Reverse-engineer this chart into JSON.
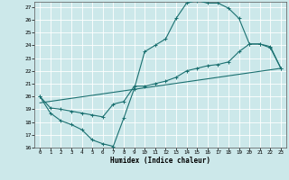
{
  "xlabel": "Humidex (Indice chaleur)",
  "bg_color": "#cce8ea",
  "line_color": "#1a7070",
  "grid_color": "#ffffff",
  "xlim": [
    -0.5,
    23.5
  ],
  "ylim": [
    16,
    27.4
  ],
  "xticks": [
    0,
    1,
    2,
    3,
    4,
    5,
    6,
    7,
    8,
    9,
    10,
    11,
    12,
    13,
    14,
    15,
    16,
    17,
    18,
    19,
    20,
    21,
    22,
    23
  ],
  "yticks": [
    16,
    17,
    18,
    19,
    20,
    21,
    22,
    23,
    24,
    25,
    26,
    27
  ],
  "line1_x": [
    0,
    1,
    2,
    3,
    4,
    5,
    6,
    7,
    8,
    9,
    10,
    11,
    12,
    13,
    14,
    15,
    16,
    17,
    18,
    19,
    20,
    21,
    22,
    23
  ],
  "line1_y": [
    20.0,
    18.7,
    18.1,
    17.8,
    17.4,
    16.6,
    16.3,
    16.1,
    18.3,
    20.6,
    23.5,
    24.0,
    24.5,
    26.1,
    27.3,
    27.5,
    27.3,
    27.3,
    26.9,
    26.1,
    24.1,
    24.1,
    23.8,
    22.2
  ],
  "line2_x": [
    0,
    1,
    2,
    3,
    4,
    5,
    6,
    7,
    8,
    9,
    10,
    11,
    12,
    13,
    14,
    15,
    16,
    17,
    18,
    19,
    20,
    21,
    22,
    23
  ],
  "line2_y": [
    20.0,
    19.1,
    19.0,
    18.85,
    18.7,
    18.55,
    18.4,
    19.4,
    19.6,
    20.8,
    20.8,
    21.0,
    21.2,
    21.5,
    22.0,
    22.2,
    22.4,
    22.5,
    22.7,
    23.5,
    24.1,
    24.1,
    23.9,
    22.2
  ],
  "line3_x": [
    0,
    23
  ],
  "line3_y": [
    19.5,
    22.2
  ],
  "figsize": [
    3.2,
    2.0
  ],
  "dpi": 100
}
